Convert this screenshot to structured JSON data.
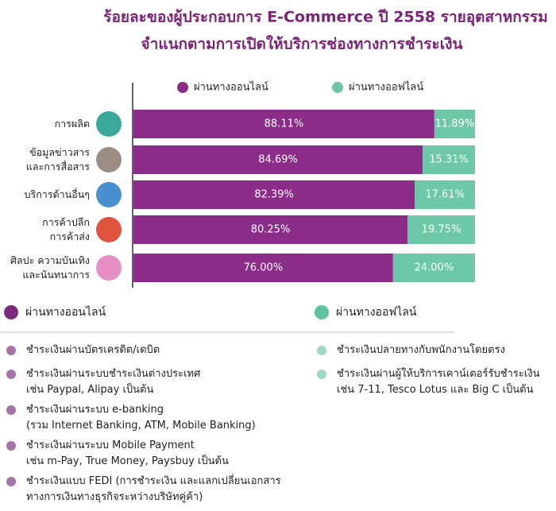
{
  "chart_data": {
    "type": "stacked-bar-horizontal",
    "title": "ร้อยละของผู้ประกอบการ E-Commerce ปี 2558 รายอุตสาหกรรม",
    "subtitle": "จำแนกตามการเปิดให้บริการช่องทางการชำระเงิน",
    "categories": [
      "การผลิต",
      "ข้อมูลข่าวสาร\nและการสื่อสาร",
      "บริการด้านอื่นๆ",
      "การค้าปลีก\nการค้าส่ง",
      "ศิลปะ ความบันเทิง\nและนันทนาการ"
    ],
    "series": [
      {
        "name": "ผ่านทางออนไลน์",
        "color": "#8b2c89",
        "values": [
          88.11,
          84.69,
          82.39,
          80.25,
          76.0
        ],
        "value_labels": [
          "88.11%",
          "84.69%",
          "82.39%",
          "80.25%",
          "76.00%"
        ]
      },
      {
        "name": "ผ่านทางออฟไลน์",
        "color": "#6cc8a6",
        "values": [
          11.89,
          15.31,
          17.61,
          19.75,
          24.0
        ],
        "value_labels": [
          "11.89%",
          "15.31%",
          "17.61%",
          "19.75%",
          "24.00%"
        ]
      }
    ],
    "xlim": [
      0,
      100
    ]
  },
  "payment_legend": {
    "online_items": [
      "ชำระเงินผ่านบัตรเครดิต/เดบิต",
      "ชำระเงินผ่านระบบชำระเงินต่างประเทศ\nเช่น Paypal, Alipay เป็นต้น",
      "ชำระเงินผ่านระบบ e-banking\n(รวม Internet Banking, ATM, Mobile Banking)",
      "ชำระเงินผ่านระบบ Mobile Payment\nเช่น m-Pay, True Money, Paysbuy เป็นต้น",
      "ชำระเงินแบบ FEDI (การชำระเงิน และแลกเปลี่ยนเอกสาร\nทางการเงินทางธุรกิจระหว่างบริษัทคู่ค้า)"
    ],
    "offline_items": [
      "ชำระเงินปลายทางกับพนักงานโดยตรง",
      "ชำระเงินผ่านผู้ให้บริการเคาน์เตอร์รับชำระเงิน\nเช่น 7-11, Tesco Lotus และ Big C เป็นต้น"
    ]
  }
}
